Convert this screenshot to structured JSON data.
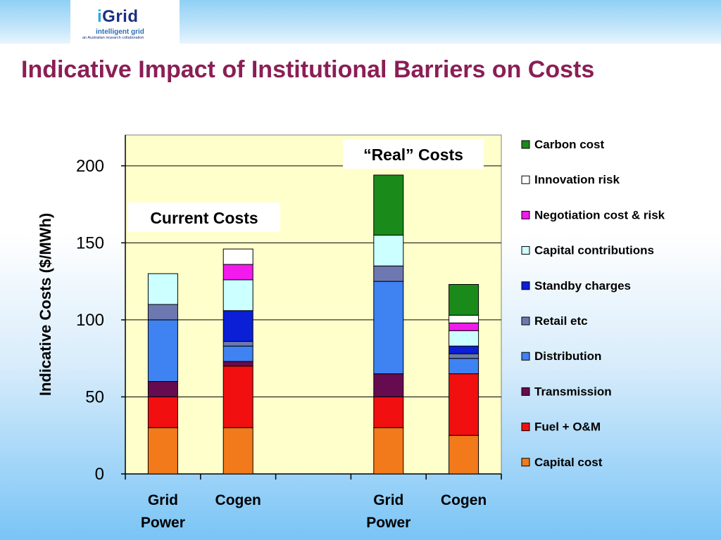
{
  "header": {
    "brand_i": "i",
    "brand_rest": "Grid",
    "tagline": "intelligent grid",
    "subtitle": "an Australian research collaboration",
    "band_color": "#8fd0f5"
  },
  "slide": {
    "title": "Indicative Impact of Institutional Barriers on Costs",
    "title_color": "#8b1e55"
  },
  "chart_data": {
    "type": "bar",
    "stacked": true,
    "categories": [
      [
        "Grid",
        "Power"
      ],
      [
        "Cogen"
      ],
      [],
      [
        "Grid",
        "Power"
      ],
      [
        "Cogen"
      ]
    ],
    "ylabel": "Indicative Costs ($/MWh)",
    "ylim": [
      0,
      220
    ],
    "yticks": [
      0,
      50,
      100,
      150,
      200
    ],
    "grid": true,
    "legend_position": "right",
    "plot_background": "#ffffcc",
    "annotations": [
      "Current Costs",
      "“Real” Costs"
    ],
    "series": [
      {
        "name": "Capital cost",
        "color": "#f27a1a",
        "values": [
          30,
          30,
          null,
          30,
          25
        ]
      },
      {
        "name": "Fuel + O&M",
        "color": "#f20f0f",
        "values": [
          20,
          40,
          null,
          20,
          40
        ]
      },
      {
        "name": "Transmission",
        "color": "#660b50",
        "values": [
          10,
          3,
          null,
          15,
          0
        ]
      },
      {
        "name": "Distribution",
        "color": "#3f82f2",
        "values": [
          40,
          10,
          null,
          60,
          10
        ]
      },
      {
        "name": "Retail etc",
        "color": "#6e78b0",
        "values": [
          10,
          3,
          null,
          10,
          3
        ]
      },
      {
        "name": "Standby charges",
        "color": "#0a1fd6",
        "values": [
          0,
          20,
          null,
          0,
          5
        ]
      },
      {
        "name": "Capital contributions",
        "color": "#ccffff",
        "values": [
          20,
          20,
          null,
          20,
          10
        ]
      },
      {
        "name": "Negotiation cost & risk",
        "color": "#f21aec",
        "values": [
          0,
          10,
          null,
          0,
          5
        ]
      },
      {
        "name": "Innovation risk",
        "color": "#ffffff",
        "values": [
          0,
          10,
          null,
          0,
          5
        ]
      },
      {
        "name": "Carbon cost",
        "color": "#1a8a1a",
        "values": [
          0,
          0,
          null,
          39,
          20
        ]
      }
    ]
  }
}
